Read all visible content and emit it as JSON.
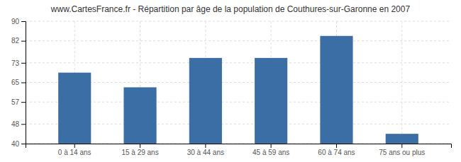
{
  "chart_data": {
    "type": "bar",
    "title": "www.CartesFrance.fr - Répartition par âge de la population de Couthures-sur-Garonne en 2007",
    "categories": [
      "0 à 14 ans",
      "15 à 29 ans",
      "30 à 44 ans",
      "45 à 59 ans",
      "60 à 74 ans",
      "75 ans ou plus"
    ],
    "values": [
      69,
      63,
      75,
      75,
      84,
      44
    ],
    "color": "#3a6ea5",
    "ylim": [
      40,
      90
    ],
    "yticks": [
      40,
      48,
      57,
      65,
      73,
      82,
      90
    ],
    "grid": true
  }
}
